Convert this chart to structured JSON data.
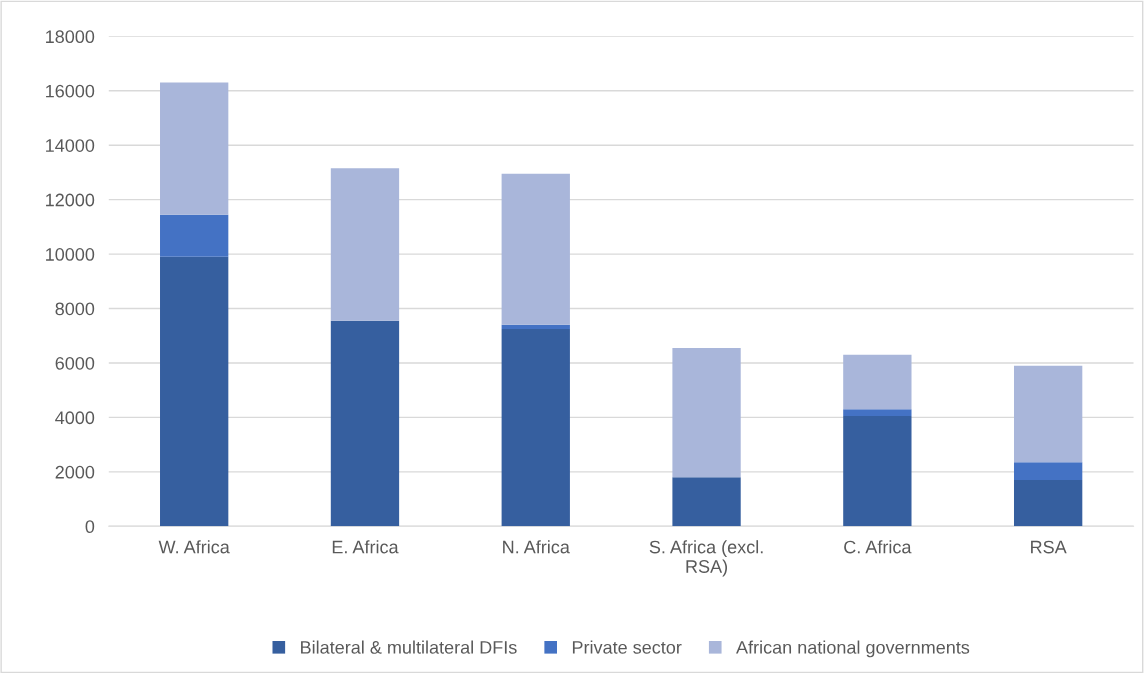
{
  "chart_data": {
    "type": "bar",
    "stacked": true,
    "categories": [
      "W. Africa",
      "E. Africa",
      "N. Africa",
      "S. Africa (excl. RSA)",
      "C. Africa",
      "RSA"
    ],
    "series": [
      {
        "name": "Bilateral & multilateral DFIs",
        "color": "#365f9f",
        "values": [
          9900,
          7550,
          7250,
          1800,
          4050,
          1700
        ]
      },
      {
        "name": "Private sector",
        "color": "#4472c4",
        "values": [
          1550,
          0,
          150,
          0,
          250,
          650
        ]
      },
      {
        "name": "African national governments",
        "color": "#a9b6da",
        "values": [
          4850,
          5600,
          5550,
          4750,
          2000,
          3550
        ]
      }
    ],
    "ylim": [
      0,
      18000
    ],
    "yticks": [
      0,
      2000,
      4000,
      6000,
      8000,
      10000,
      12000,
      14000,
      16000,
      18000
    ],
    "grid": "y",
    "legend": "bottom"
  }
}
